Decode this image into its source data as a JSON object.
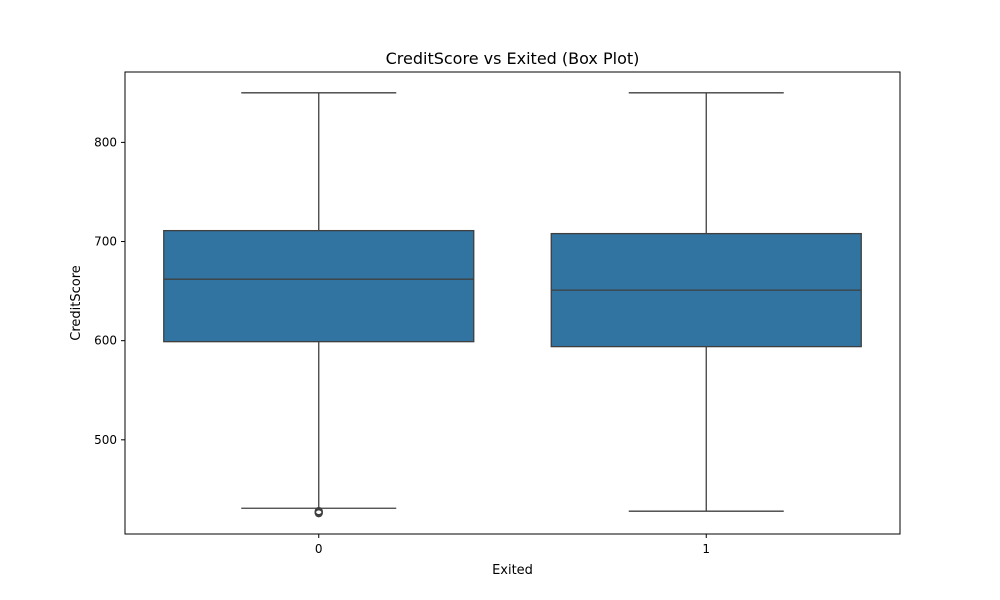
{
  "chart_data": {
    "type": "box",
    "title": "CreditScore vs Exited (Box Plot)",
    "xlabel": "Exited",
    "ylabel": "CreditScore",
    "categories": [
      "0",
      "1"
    ],
    "ylim": [
      405,
      871
    ],
    "yticks": [
      500,
      600,
      700,
      800
    ],
    "grid": false,
    "colors": {
      "box_fill": "#3274a1",
      "box_edge": "#3f3f3f",
      "axis": "#000000"
    },
    "boxes": [
      {
        "category": "0",
        "whisker_low": 431,
        "q1": 599,
        "median": 662,
        "q3": 711,
        "whisker_high": 850,
        "outliers": [
          428,
          427,
          426
        ]
      },
      {
        "category": "1",
        "whisker_low": 428,
        "q1": 594,
        "median": 651,
        "q3": 708,
        "whisker_high": 850,
        "outliers": []
      }
    ]
  }
}
